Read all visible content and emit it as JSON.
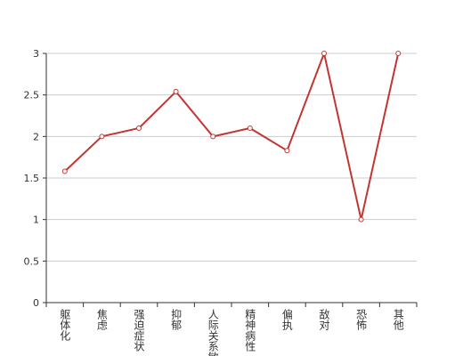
{
  "chart_data": {
    "type": "line",
    "categories": [
      "躯体化",
      "焦虑",
      "强迫症状",
      "抑郁",
      "人际关系敏感",
      "精神病性",
      "偏执",
      "敌对",
      "恐怖",
      "其他"
    ],
    "series": [
      {
        "color": "#c23531",
        "values": [
          1.58,
          2.0,
          2.1,
          2.54,
          2.0,
          2.1,
          1.83,
          3.0,
          1.0,
          3.0
        ]
      }
    ],
    "ylim": [
      0,
      3
    ],
    "yticks": [
      0,
      0.5,
      1,
      1.5,
      2,
      2.5,
      3
    ],
    "grid": true
  }
}
